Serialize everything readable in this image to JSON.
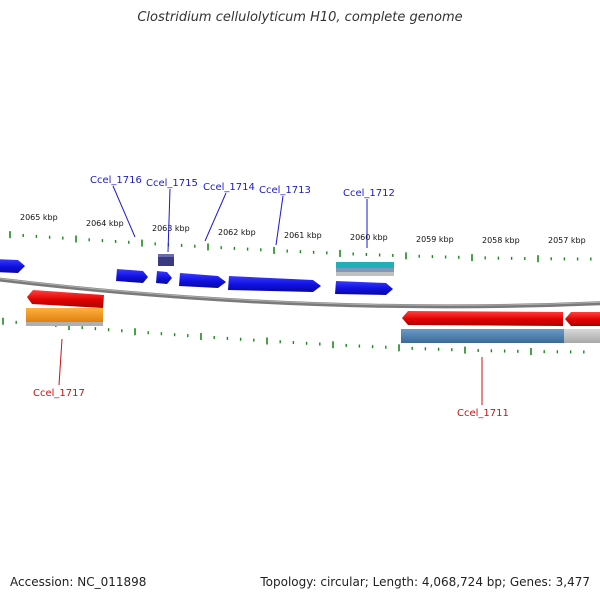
{
  "title": "Clostridium cellulolyticum H10, complete genome",
  "colors": {
    "forward_gene": "#1010e0",
    "reverse_gene": "#e00000",
    "forward_label": "#1a1acc",
    "reverse_label": "#cc1111",
    "tick": "#1a8a1a",
    "backbone": "#808080",
    "feature_orange": "#f59a1a",
    "feature_steel": "#4a80b0",
    "feature_teal": "#20b0b8",
    "feature_navy": "#3a3a80"
  },
  "kbp_labels": [
    "2065 kbp",
    "2064 kbp",
    "2063 kbp",
    "2062 kbp",
    "2061 kbp",
    "2060 kbp",
    "2059 kbp",
    "2058 kbp",
    "2057 kbp"
  ],
  "gene_labels": [
    "Ccel_1716",
    "Ccel_1715",
    "Ccel_1714",
    "Ccel_1713",
    "Ccel_1712",
    "Ccel_1717",
    "Ccel_1711"
  ],
  "footer": {
    "accession": "Accession: NC_011898",
    "topology": "Topology: circular; Length: 4,068,724 bp; Genes: 3,477"
  }
}
